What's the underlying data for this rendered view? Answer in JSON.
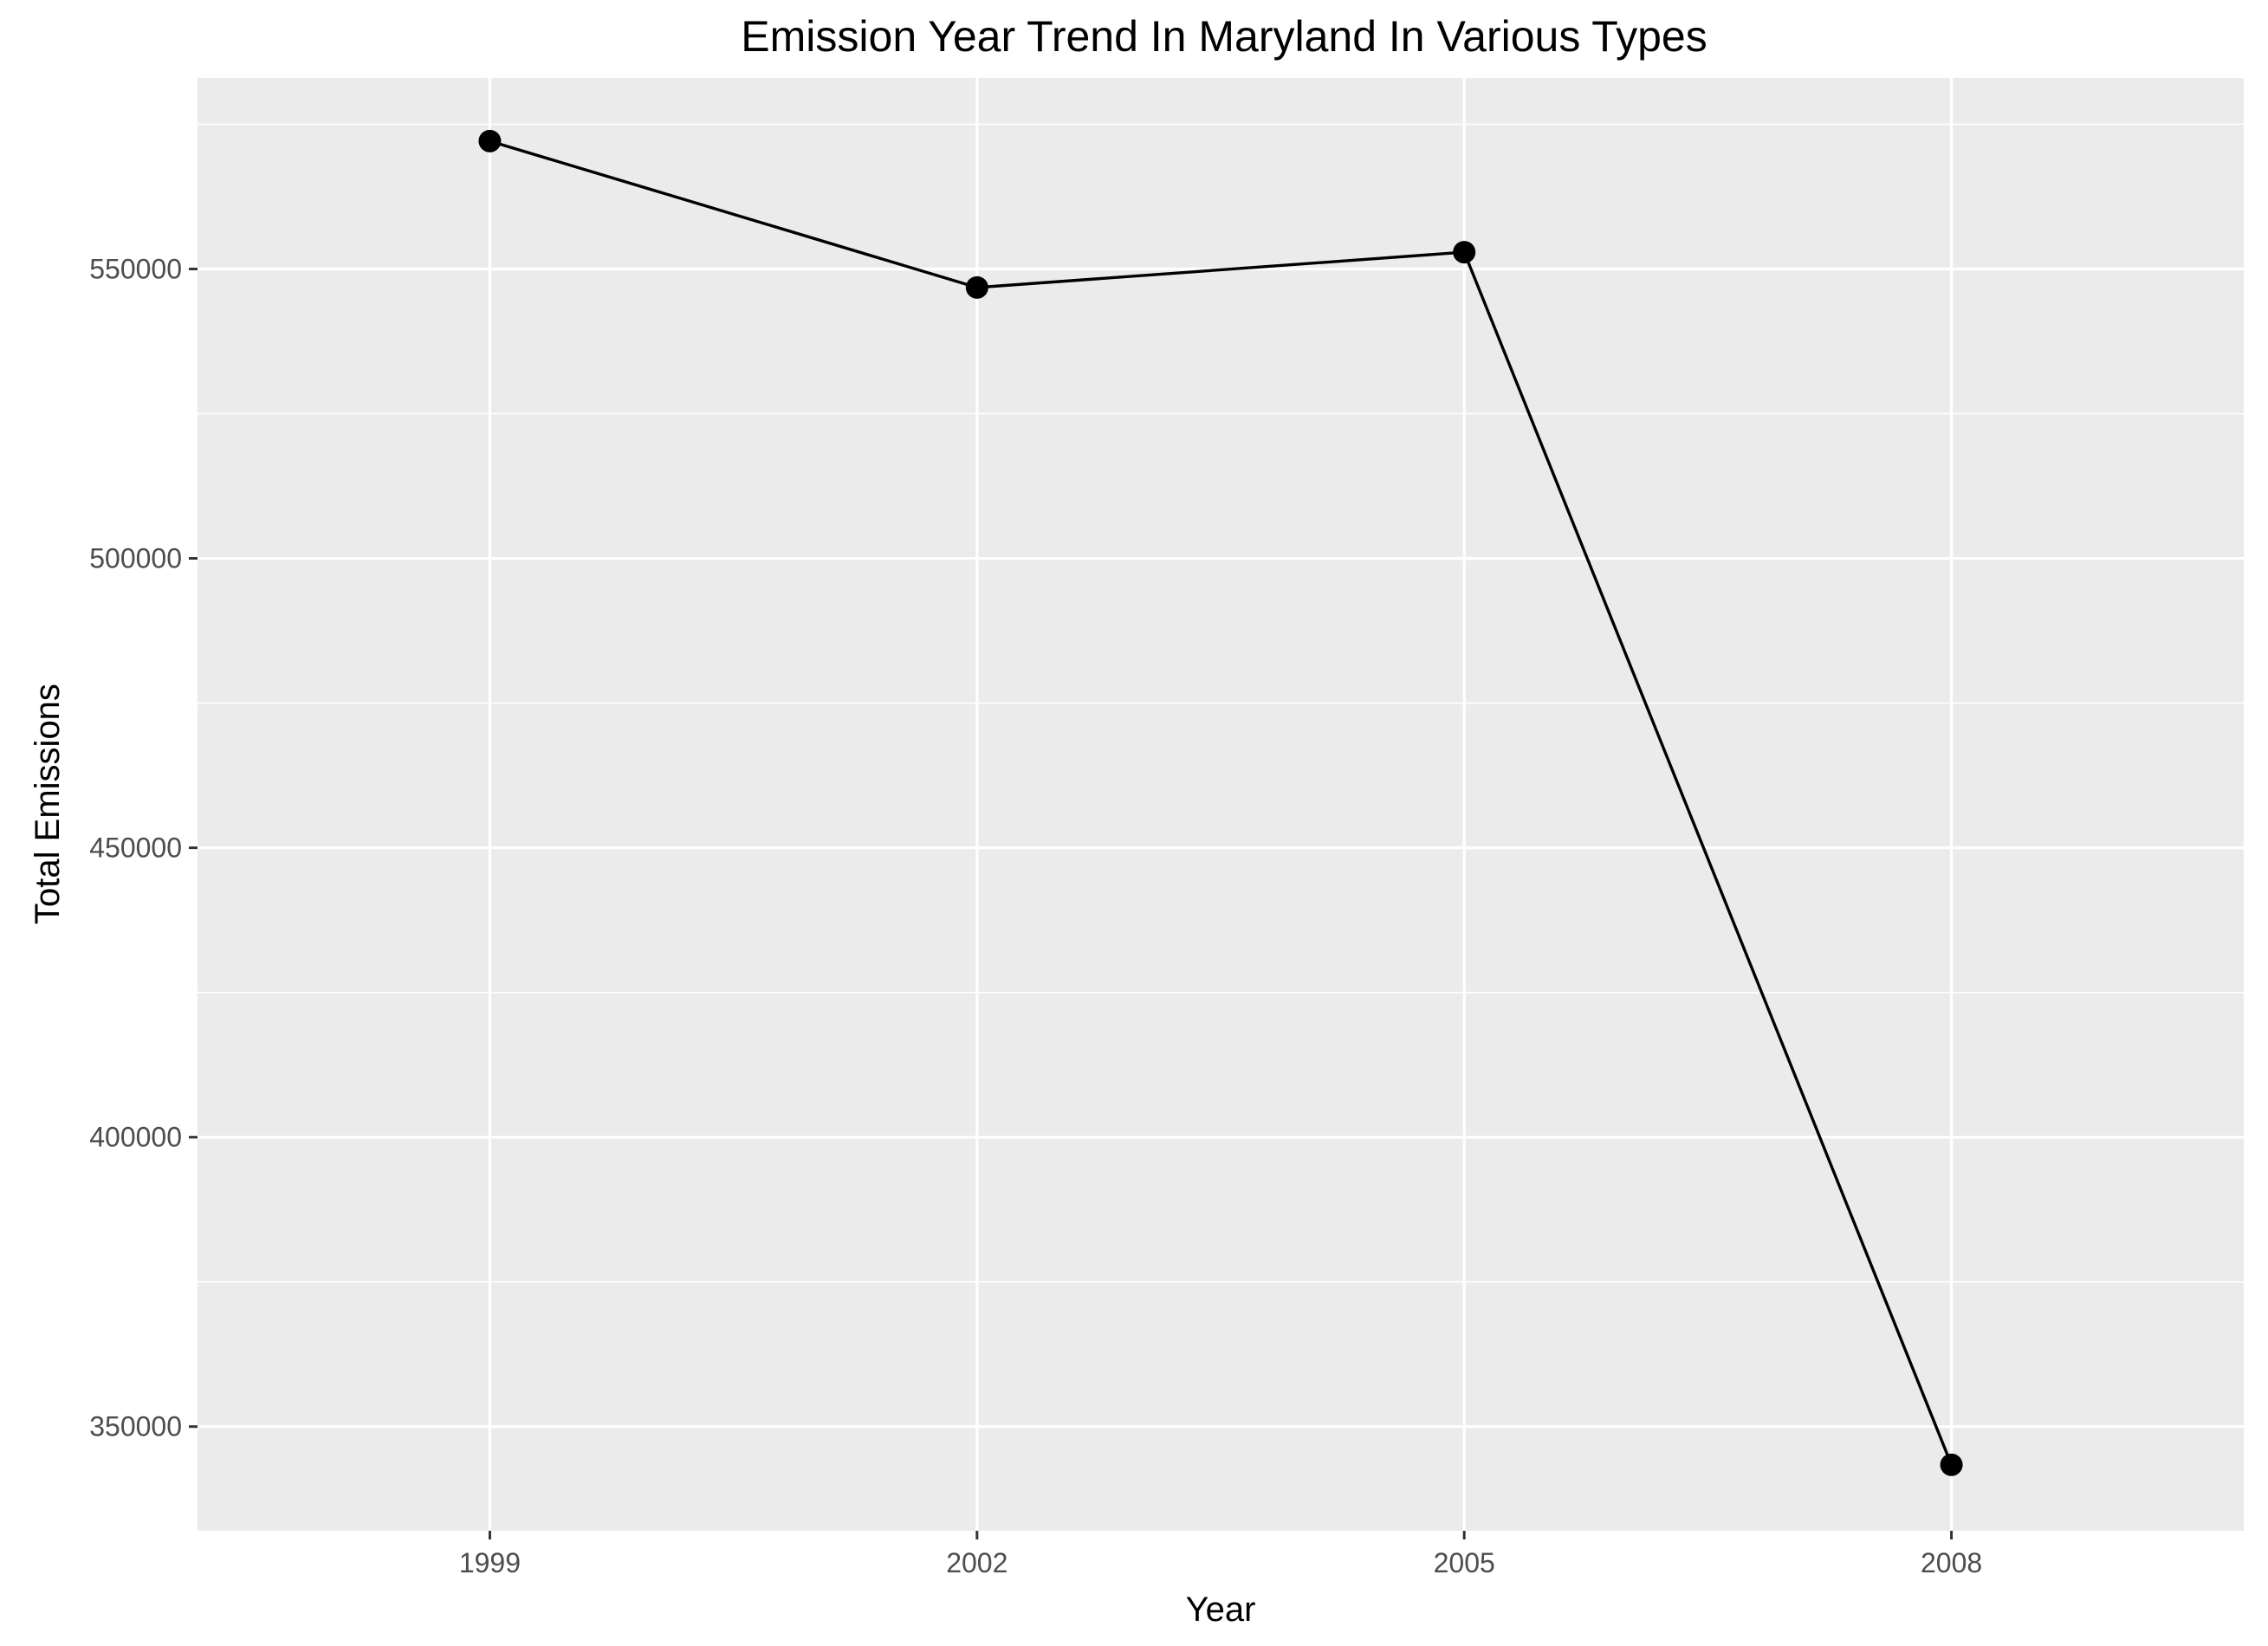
{
  "chart_data": {
    "type": "line",
    "title": "Emission Year Trend In Maryland In Various Types",
    "xlabel": "Year",
    "ylabel": "Total Emissions",
    "categories": [
      "1999",
      "2002",
      "2005",
      "2008"
    ],
    "x": [
      1999,
      2002,
      2005,
      2008
    ],
    "series": [
      {
        "values": [
          572100,
          546800,
          552900,
          343400
        ]
      }
    ],
    "xlim": [
      1997.2,
      2009.8
    ],
    "ylim": [
      332000,
      583000
    ],
    "yticks": [
      350000,
      400000,
      450000,
      500000,
      550000
    ],
    "ytick_labels": [
      "350000",
      "400000",
      "450000",
      "500000",
      "550000"
    ],
    "grid": true,
    "colors": {
      "panel_background": "#ebebeb",
      "grid_major": "#ffffff",
      "line": "#000000",
      "point": "#000000",
      "tick_label": "#4d4d4d",
      "tick_mark": "#333333"
    }
  }
}
